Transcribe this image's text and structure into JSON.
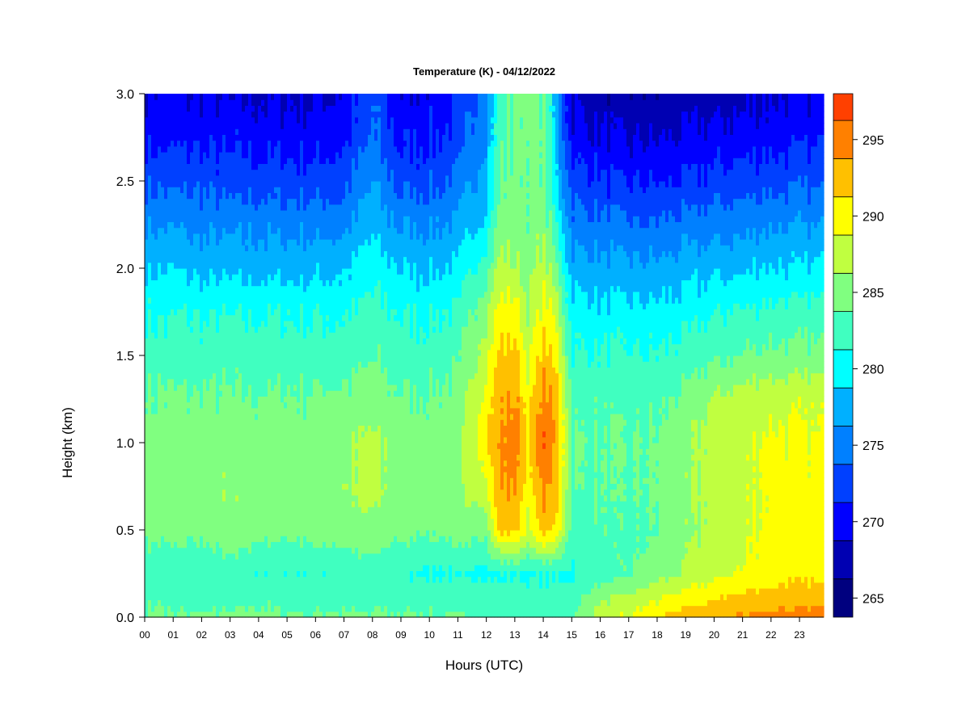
{
  "chart_data": {
    "type": "heatmap",
    "title": "Temperature (K) - 04/12/2022",
    "xlabel": "Hours (UTC)",
    "ylabel": "Height (km)",
    "x_ticks": [
      "00",
      "01",
      "02",
      "03",
      "04",
      "05",
      "06",
      "07",
      "08",
      "09",
      "10",
      "11",
      "12",
      "13",
      "14",
      "15",
      "16",
      "17",
      "18",
      "19",
      "20",
      "21",
      "22",
      "23"
    ],
    "xlim": [
      0,
      23.85
    ],
    "y_ticks": [
      "0.0",
      "0.5",
      "1.0",
      "1.5",
      "2.0",
      "2.5",
      "3.0"
    ],
    "ylim": [
      0,
      3.0
    ],
    "colorbar": {
      "ticks": [
        "265",
        "270",
        "275",
        "280",
        "285",
        "290",
        "295"
      ],
      "range": [
        263.75,
        298.0
      ],
      "level_step": 2.5,
      "colors": [
        "#00007f",
        "#0000b2",
        "#0000ff",
        "#0040ff",
        "#0080ff",
        "#00b0ff",
        "#00ffff",
        "#40ffc0",
        "#80ff80",
        "#c0ff40",
        "#ffff00",
        "#ffc000",
        "#ff8000",
        "#ff4000",
        "#ff0000",
        "#b20000",
        "#800000"
      ]
    },
    "field": {
      "description_hours": [
        0,
        1,
        2,
        3,
        4,
        5,
        6,
        7,
        8,
        9,
        10,
        11,
        12,
        12.5,
        13,
        13.5,
        14,
        14.5,
        15,
        16,
        17,
        18,
        19,
        20,
        21,
        22,
        23,
        23.85
      ],
      "heights_km": [
        0.0,
        0.25,
        0.5,
        0.75,
        1.0,
        1.25,
        1.5,
        1.75,
        2.0,
        2.25,
        2.5,
        2.75,
        3.0
      ],
      "temperature_K": [
        [
          284.5,
          282.0,
          284.5,
          285.0,
          285.0,
          284.0,
          282.5,
          281.0,
          278.5,
          276.0,
          273.0,
          270.5,
          269.0
        ],
        [
          284.0,
          281.5,
          284.5,
          285.0,
          285.0,
          284.0,
          282.5,
          281.0,
          278.5,
          276.0,
          273.0,
          270.5,
          269.0
        ],
        [
          284.0,
          281.5,
          284.5,
          285.0,
          285.0,
          284.0,
          282.5,
          281.0,
          278.0,
          275.5,
          273.0,
          270.5,
          269.0
        ],
        [
          284.0,
          282.0,
          285.5,
          286.0,
          285.0,
          284.0,
          282.5,
          281.0,
          278.0,
          275.5,
          272.5,
          270.5,
          268.5
        ],
        [
          284.5,
          281.5,
          284.5,
          285.0,
          285.0,
          284.0,
          282.5,
          281.0,
          278.0,
          275.5,
          272.5,
          270.0,
          268.5
        ],
        [
          284.0,
          281.5,
          284.5,
          285.0,
          285.0,
          284.0,
          282.5,
          281.0,
          278.0,
          275.5,
          272.5,
          270.0,
          268.5
        ],
        [
          284.0,
          281.5,
          284.5,
          285.0,
          285.0,
          284.0,
          282.5,
          281.0,
          278.0,
          275.5,
          272.5,
          270.0,
          268.5
        ],
        [
          284.0,
          282.0,
          285.0,
          286.0,
          285.5,
          284.5,
          282.5,
          281.0,
          278.5,
          275.5,
          273.0,
          270.5,
          269.0
        ],
        [
          284.0,
          282.0,
          285.5,
          287.0,
          287.0,
          285.0,
          283.5,
          282.0,
          280.5,
          278.0,
          276.0,
          274.0,
          273.5
        ],
        [
          284.0,
          281.5,
          284.5,
          285.0,
          285.0,
          284.0,
          282.5,
          281.0,
          278.5,
          276.0,
          273.0,
          270.5,
          269.0
        ],
        [
          284.0,
          281.0,
          284.5,
          285.0,
          285.0,
          284.0,
          282.5,
          281.0,
          278.5,
          276.0,
          273.0,
          271.0,
          269.5
        ],
        [
          284.0,
          281.0,
          284.5,
          285.0,
          285.0,
          284.5,
          283.0,
          281.5,
          279.0,
          276.5,
          274.0,
          272.0,
          270.5
        ],
        [
          283.0,
          281.0,
          285.0,
          289.0,
          291.0,
          290.0,
          288.0,
          286.0,
          283.0,
          280.0,
          278.0,
          277.0,
          276.0
        ],
        [
          283.0,
          281.0,
          292.0,
          293.5,
          294.0,
          293.5,
          292.0,
          290.0,
          287.0,
          285.0,
          284.0,
          283.0,
          282.0
        ],
        [
          283.0,
          281.0,
          292.0,
          294.0,
          294.5,
          294.0,
          292.0,
          290.0,
          286.5,
          285.0,
          284.5,
          284.5,
          284.5
        ],
        [
          283.0,
          281.0,
          288.0,
          290.0,
          291.0,
          290.0,
          288.0,
          286.0,
          285.0,
          284.5,
          284.5,
          285.0,
          285.0
        ],
        [
          283.0,
          281.0,
          292.5,
          294.5,
          296.0,
          295.0,
          292.5,
          290.0,
          287.5,
          285.5,
          284.5,
          284.5,
          284.5
        ],
        [
          283.0,
          281.0,
          290.0,
          292.5,
          293.0,
          292.5,
          290.0,
          287.5,
          284.0,
          281.0,
          278.5,
          277.0,
          276.0
        ],
        [
          283.5,
          281.0,
          282.5,
          283.5,
          284.0,
          283.0,
          281.5,
          280.0,
          277.5,
          275.0,
          272.5,
          270.0,
          268.5
        ],
        [
          288.0,
          282.5,
          283.5,
          283.5,
          283.5,
          283.0,
          281.5,
          279.5,
          277.0,
          274.5,
          271.5,
          269.0,
          267.0
        ],
        [
          289.0,
          283.5,
          283.0,
          283.5,
          283.5,
          283.0,
          281.5,
          279.5,
          277.0,
          274.0,
          271.0,
          268.5,
          266.5
        ],
        [
          291.0,
          285.0,
          283.5,
          284.0,
          284.0,
          283.0,
          281.5,
          279.5,
          277.0,
          274.0,
          271.0,
          268.5,
          266.5
        ],
        [
          292.5,
          286.5,
          285.5,
          285.5,
          285.5,
          284.5,
          282.0,
          280.0,
          277.5,
          274.5,
          271.5,
          269.0,
          267.0
        ],
        [
          293.5,
          288.0,
          287.0,
          287.5,
          287.5,
          286.5,
          283.0,
          281.0,
          278.0,
          275.0,
          272.0,
          269.5,
          267.5
        ],
        [
          294.0,
          289.0,
          288.0,
          288.0,
          288.0,
          287.5,
          284.0,
          281.5,
          278.5,
          275.5,
          272.5,
          270.0,
          268.0
        ],
        [
          294.5,
          290.0,
          289.5,
          289.5,
          289.5,
          288.0,
          284.5,
          282.0,
          279.0,
          276.0,
          273.0,
          270.5,
          268.5
        ],
        [
          294.5,
          290.5,
          289.5,
          289.5,
          289.0,
          288.0,
          284.5,
          282.0,
          279.0,
          276.0,
          273.0,
          270.5,
          268.5
        ],
        [
          294.5,
          290.5,
          289.5,
          289.0,
          289.0,
          288.0,
          284.5,
          282.0,
          279.0,
          276.0,
          273.0,
          270.5,
          268.5
        ]
      ]
    },
    "legend": "right colorbar",
    "grid": false
  }
}
